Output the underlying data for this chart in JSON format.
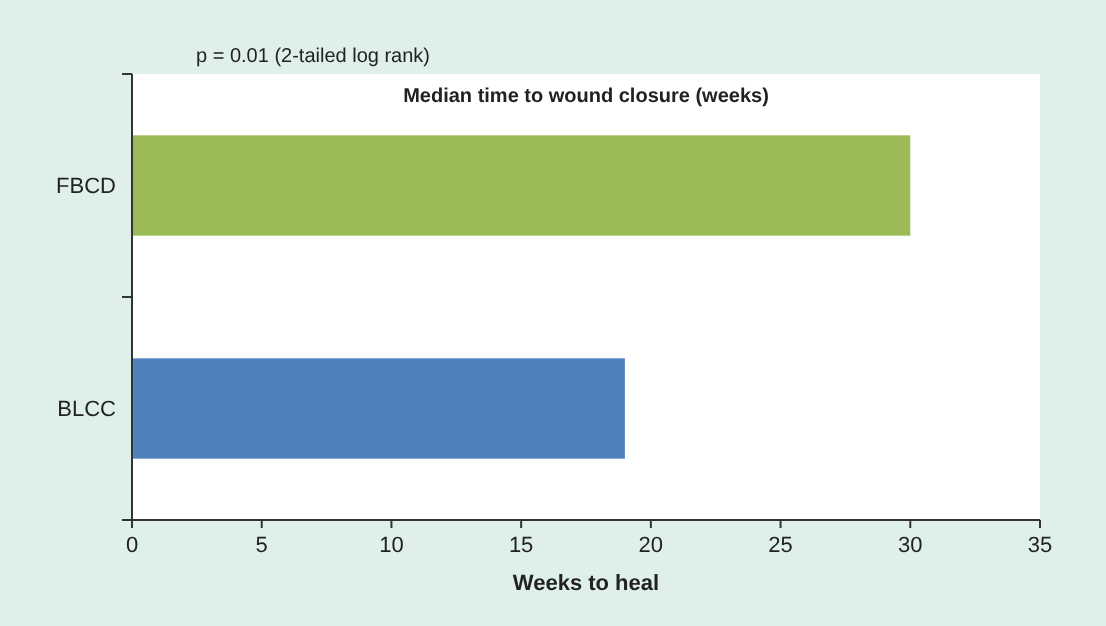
{
  "chart_data": {
    "type": "bar",
    "orientation": "horizontal",
    "title": "Median time to wound closure (weeks)",
    "xlabel": "Weeks to heal",
    "annotations": [
      "p = 0.01 (2-tailed log rank)"
    ],
    "categories": [
      "FBCD",
      "BLCC"
    ],
    "values": [
      30,
      19
    ],
    "colors": [
      "#9bbb59",
      "#4f81bd"
    ],
    "xlim": [
      0,
      35
    ],
    "xticks": [
      0,
      5,
      10,
      15,
      20,
      25,
      30,
      35
    ],
    "grid": false
  }
}
